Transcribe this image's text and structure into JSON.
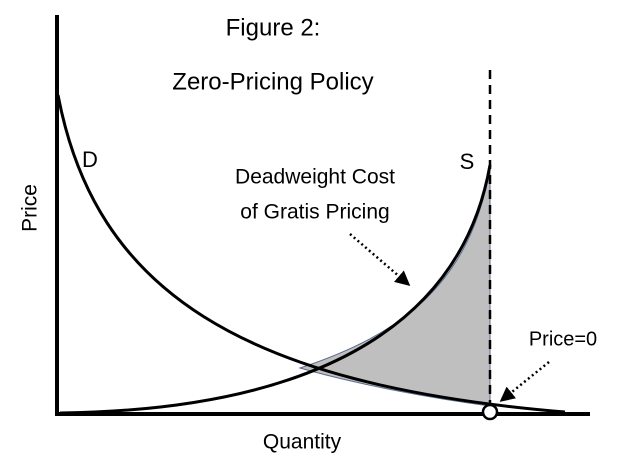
{
  "title": {
    "line1": "Figure 2:",
    "line2": "Zero-Pricing Policy"
  },
  "axes": {
    "y_label": "Price",
    "x_label": "Quantity"
  },
  "curves": {
    "demand": "D",
    "supply": "S"
  },
  "annotations": {
    "deadweight_line1": "Deadweight Cost",
    "deadweight_line2": "of Gratis Pricing",
    "price_zero": "Price=0"
  }
}
